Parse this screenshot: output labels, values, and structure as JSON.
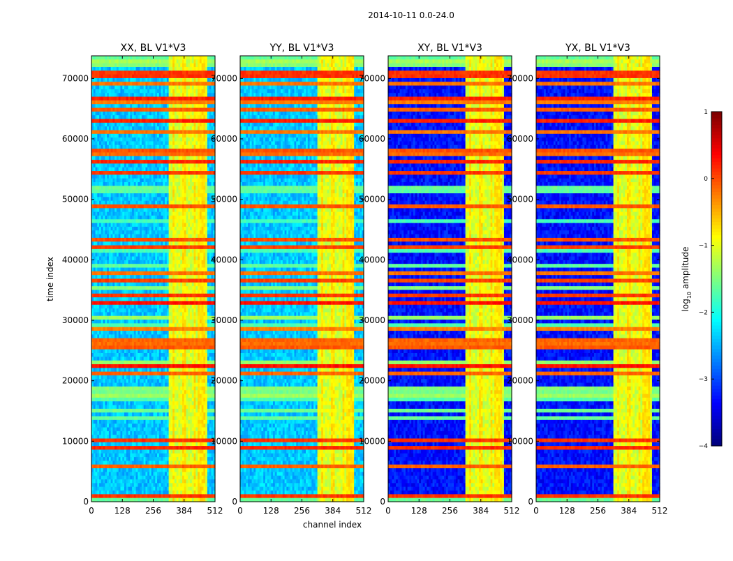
{
  "colors": {
    "background": "#ffffff",
    "axis": "#000000",
    "colormap": [
      "#00007f",
      "#0000ff",
      "#007fff",
      "#00ffff",
      "#7fff7f",
      "#ffff00",
      "#ff7f00",
      "#ff0000",
      "#7f0000"
    ]
  },
  "chart_data": {
    "type": "heatmap",
    "suptitle": "2014-10-11 0.0-24.0",
    "panels": [
      {
        "title": "XX, BL V1*V3",
        "base_level": -2.4,
        "rfi_channel_range": [
          325,
          480
        ]
      },
      {
        "title": "YY, BL V1*V3",
        "base_level": -2.4,
        "rfi_channel_range": [
          325,
          475
        ]
      },
      {
        "title": "XY, BL V1*V3",
        "base_level": -3.3,
        "rfi_channel_range": [
          325,
          480
        ]
      },
      {
        "title": "YX, BL V1*V3",
        "base_level": -3.3,
        "rfi_channel_range": [
          325,
          480
        ]
      }
    ],
    "x": {
      "label": "channel index",
      "ticks": [
        0,
        128,
        256,
        384,
        512
      ],
      "range": [
        0,
        512
      ]
    },
    "y": {
      "label": "time index",
      "ticks": [
        0,
        10000,
        20000,
        30000,
        40000,
        50000,
        60000,
        70000
      ],
      "range": [
        0,
        73728
      ]
    },
    "colorbar": {
      "label_prefix": "log",
      "label_subscript": "10",
      "label_suffix": " amplitude",
      "ticks": [
        1,
        0,
        -1,
        -2,
        -3,
        -4
      ],
      "tick_labels": [
        "1",
        "0",
        "−1",
        "−2",
        "−3",
        "−4"
      ],
      "range": [
        -4,
        1
      ],
      "colormap": "jet"
    }
  }
}
